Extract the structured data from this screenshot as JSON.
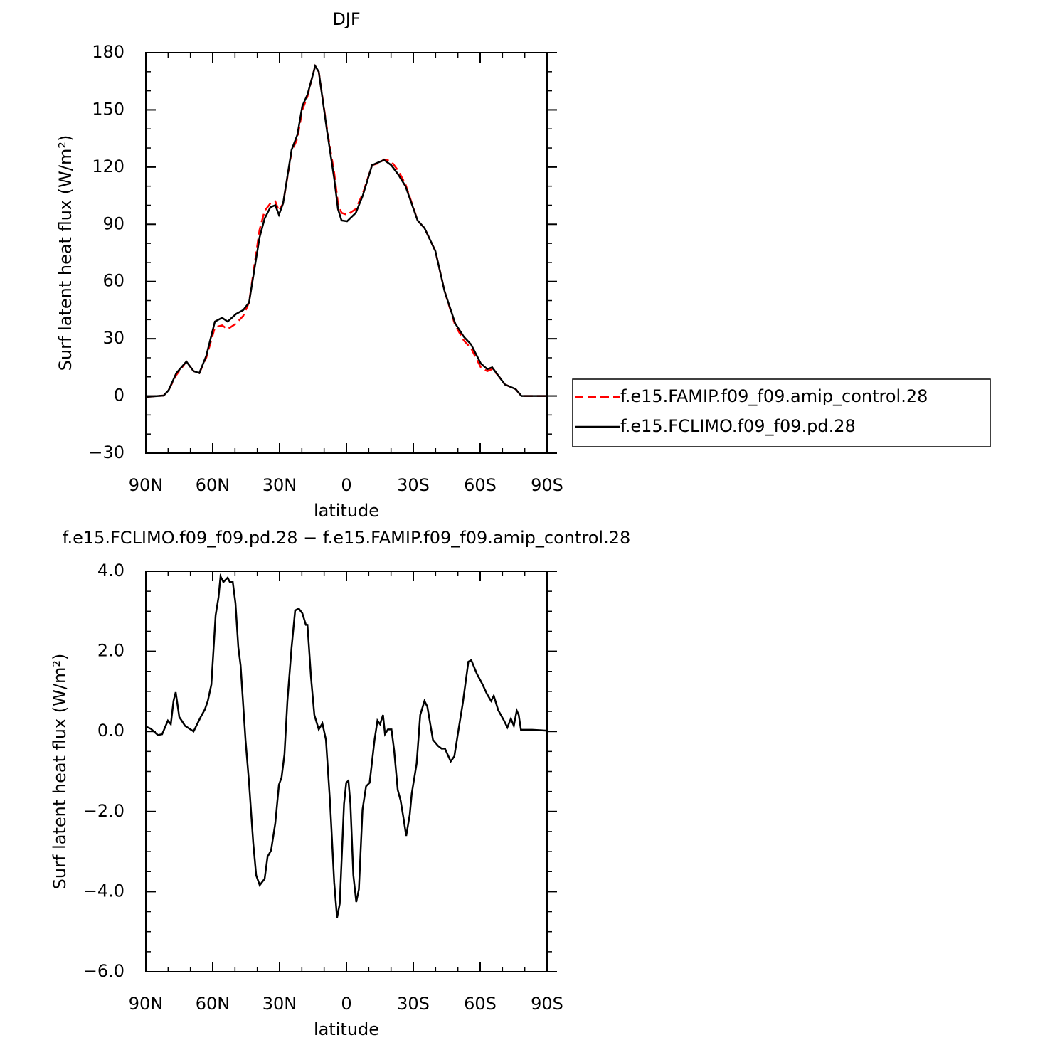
{
  "chart_data": [
    {
      "type": "line",
      "title": "DJF",
      "x_label": "latitude",
      "y_label": "Surf latent heat flux (W/m²)",
      "xlim": [
        90,
        -90
      ],
      "xticks": [
        {
          "value": 90,
          "label": "90N"
        },
        {
          "value": 60,
          "label": "60N"
        },
        {
          "value": 30,
          "label": "30N"
        },
        0,
        {
          "value": -30,
          "label": "30S"
        },
        {
          "value": -60,
          "label": "60S"
        },
        {
          "value": -90,
          "label": "90S"
        }
      ],
      "ylim": [
        -30,
        180
      ],
      "yticks": [
        {
          "value": -30,
          "label": "−30"
        },
        0,
        30,
        60,
        90,
        120,
        150,
        180
      ],
      "legend": "outside right",
      "x": [
        90,
        82,
        79.8,
        76.3,
        71.8,
        68.6,
        66,
        62.9,
        59,
        55.8,
        53.3,
        49.5,
        46.3,
        43.7,
        39,
        36.7,
        34.1,
        31.9,
        30.3,
        28.4,
        24.6,
        22,
        19.8,
        17.5,
        15.6,
        14,
        12.4,
        8.7,
        5.5,
        3.8,
        2.2,
        -0.3,
        -4.2,
        -7.3,
        -11.5,
        -14.4,
        -16.9,
        -20.1,
        -23.3,
        -26.5,
        -31.9,
        -35,
        -39.9,
        -44,
        -48.8,
        -52.7,
        -55.9,
        -60.3,
        -63.2,
        -65.4,
        -67.9,
        -71.1,
        -75.9,
        -78.5,
        -90
      ],
      "series": [
        {
          "name": "f.e15.FAMIP.f09_f09.amip_control.28",
          "color": "#ff0000",
          "dash": "dashed",
          "values": [
            -0.5,
            0.2,
            3,
            11,
            18,
            13,
            12,
            20,
            36,
            37,
            35,
            38,
            42,
            49,
            87,
            97,
            101,
            102,
            97,
            101,
            128,
            135,
            150,
            157,
            166,
            173,
            170,
            140,
            117,
            101,
            96,
            95,
            98,
            106,
            121,
            122,
            124,
            123,
            118,
            111,
            92,
            88,
            76,
            55,
            37,
            29,
            25,
            15,
            13,
            14,
            11,
            6,
            3.6,
            0,
            0
          ]
        },
        {
          "name": "f.e15.FCLIMO.f09_f09.pd.28",
          "color": "#000000",
          "dash": "solid",
          "values": [
            -0.5,
            0.2,
            3,
            12,
            18,
            13,
            12,
            21,
            39,
            41,
            39,
            43,
            45,
            49,
            83,
            93,
            99,
            100,
            95,
            101,
            129,
            137,
            152,
            158,
            166,
            173,
            170,
            139,
            114,
            98,
            92,
            91.6,
            96,
            105,
            121,
            122.5,
            123.7,
            121,
            116,
            110,
            92,
            88,
            76,
            55,
            38,
            31,
            27,
            17,
            14,
            15,
            11,
            6,
            3.6,
            0,
            0
          ]
        }
      ]
    },
    {
      "type": "line",
      "title": "f.e15.FCLIMO.f09_f09.pd.28 − f.e15.FAMIP.f09_f09.amip_control.28",
      "x_label": "latitude",
      "y_label": "Surf latent heat flux (W/m²)",
      "xlim": [
        90,
        -90
      ],
      "xticks": [
        {
          "value": 90,
          "label": "90N"
        },
        {
          "value": 60,
          "label": "60N"
        },
        {
          "value": 30,
          "label": "30N"
        },
        0,
        {
          "value": -30,
          "label": "30S"
        },
        {
          "value": -60,
          "label": "60S"
        },
        {
          "value": -90,
          "label": "90S"
        }
      ],
      "ylim": [
        -6,
        4
      ],
      "yticks": [
        {
          "value": -6,
          "label": "−6.0"
        },
        {
          "value": -4,
          "label": "−4.0"
        },
        {
          "value": -2,
          "label": "−2.0"
        },
        {
          "value": 0,
          "label": "0.0"
        },
        {
          "value": 2,
          "label": "2.0"
        },
        {
          "value": 4,
          "label": "4.0"
        }
      ],
      "color": "#000000",
      "x": [
        90,
        87.8,
        84.6,
        82.7,
        80.1,
        78.8,
        77.6,
        76.6,
        75,
        72.4,
        68.6,
        65.4,
        63.5,
        62.2,
        60.6,
        58.7,
        57.4,
        56.5,
        55.2,
        53.3,
        52.3,
        51,
        49.8,
        48.5,
        47.5,
        45.3,
        43.7,
        41.8,
        40.5,
        38.9,
        36.7,
        35.4,
        33.8,
        31.9,
        30.3,
        29.1,
        27.8,
        26.5,
        24.6,
        23,
        21.4,
        19.8,
        18.2,
        17.5,
        15.9,
        14.4,
        12.4,
        10.8,
        9.2,
        7.3,
        5.5,
        4.2,
        3,
        1.1,
        0.1,
        -0.9,
        -1.8,
        -3.1,
        -4.4,
        -5.6,
        -7.2,
        -8.8,
        -10.4,
        -12.6,
        -13.9,
        -15.1,
        -16.4,
        -17.3,
        -18.6,
        -20.2,
        -21.4,
        -23,
        -24.3,
        -25.5,
        -26.8,
        -28.4,
        -29.3,
        -31.5,
        -33.1,
        -35,
        -36.3,
        -38.8,
        -41.1,
        -42.7,
        -44.2,
        -46.8,
        -48.4,
        -50.3,
        -52.2,
        -54.7,
        -56,
        -58.5,
        -61.1,
        -63,
        -64.9,
        -66.1,
        -68.1,
        -70.6,
        -72.2,
        -73.8,
        -75.1,
        -76.4,
        -77.3,
        -78.3,
        -83.3,
        -90
      ],
      "values": [
        0.12,
        0.07,
        -0.09,
        -0.07,
        0.27,
        0.18,
        0.76,
        0.98,
        0.36,
        0.14,
        0,
        0.36,
        0.55,
        0.76,
        1.17,
        2.9,
        3.34,
        3.87,
        3.73,
        3.84,
        3.73,
        3.73,
        3.2,
        2.1,
        1.65,
        -0.21,
        -1.28,
        -2.79,
        -3.59,
        -3.84,
        -3.68,
        -3.13,
        -2.97,
        -2.29,
        -1.33,
        -1.15,
        -0.57,
        0.76,
        2.1,
        3.02,
        3.07,
        2.95,
        2.66,
        2.66,
        1.35,
        0.41,
        0.05,
        0.2,
        -0.21,
        -1.81,
        -3.77,
        -4.65,
        -4.3,
        -1.81,
        -1.28,
        -1.23,
        -1.81,
        -3.59,
        -4.26,
        -3.94,
        -1.95,
        -1.37,
        -1.28,
        -0.21,
        0.27,
        0.18,
        0.41,
        -0.07,
        0.05,
        0.05,
        -0.48,
        -1.46,
        -1.72,
        -2.13,
        -2.61,
        -2.08,
        -1.55,
        -0.8,
        0.41,
        0.76,
        0.62,
        -0.21,
        -0.36,
        -0.43,
        -0.43,
        -0.75,
        -0.62,
        0.05,
        0.71,
        1.74,
        1.78,
        1.44,
        1.17,
        0.94,
        0.76,
        0.89,
        0.53,
        0.28,
        0.1,
        0.32,
        0.14,
        0.52,
        0.41,
        0.04,
        0.04,
        0.02
      ]
    }
  ]
}
